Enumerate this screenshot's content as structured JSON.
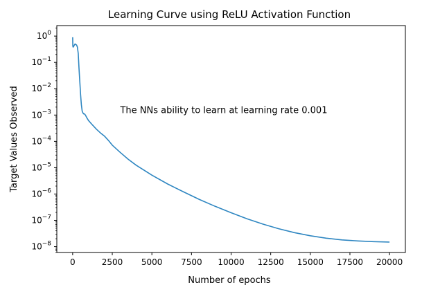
{
  "chart_data": {
    "type": "line",
    "title": "Learning Curve using ReLU Activation Function",
    "xlabel": "Number of epochs",
    "ylabel": "Target Values Observed",
    "annotation": {
      "text": "The NNs ability to learn at learning rate 0.001",
      "x": 3000,
      "y": 0.0015
    },
    "xlim": [
      -1000,
      21000
    ],
    "ylim": [
      6e-09,
      2.5
    ],
    "yscale": "log",
    "grid": false,
    "x_ticks": [
      0,
      2500,
      5000,
      7500,
      10000,
      12500,
      15000,
      17500,
      20000
    ],
    "x_tick_labels": [
      "0",
      "2500",
      "5000",
      "7500",
      "10000",
      "12500",
      "15000",
      "17500",
      "20000"
    ],
    "y_ticks": [
      1e-08,
      1e-07,
      1e-06,
      1e-05,
      0.0001,
      0.001,
      0.01,
      0.1,
      1
    ],
    "y_tick_exponents": [
      "−8",
      "−7",
      "−6",
      "−5",
      "−4",
      "−3",
      "−2",
      "−1",
      "0"
    ],
    "color": "#2e86c1",
    "series": [
      {
        "x": [
          0,
          10,
          30,
          60,
          100,
          150,
          200,
          250,
          300,
          350,
          400,
          450,
          500,
          550,
          600,
          650,
          700,
          750,
          800,
          900,
          1000,
          1250,
          1500,
          1750,
          2000,
          2250,
          2500,
          3000,
          3500,
          4000,
          5000,
          6000,
          7000,
          8000,
          9000,
          10000,
          11000,
          12000,
          13000,
          14000,
          15000,
          16000,
          17000,
          18000,
          19000,
          20000
        ],
        "y": [
          0.9,
          0.42,
          0.38,
          0.4,
          0.45,
          0.5,
          0.48,
          0.45,
          0.38,
          0.22,
          0.06,
          0.018,
          0.006,
          0.0025,
          0.0014,
          0.0012,
          0.0011,
          0.0011,
          0.001,
          0.00078,
          0.00062,
          0.00042,
          0.00029,
          0.00021,
          0.00016,
          0.00011,
          7.2e-05,
          3.8e-05,
          2.1e-05,
          1.25e-05,
          5.2e-06,
          2.4e-06,
          1.2e-06,
          6.2e-07,
          3.4e-07,
          1.95e-07,
          1.15e-07,
          7.2e-08,
          4.8e-08,
          3.4e-08,
          2.6e-08,
          2.1e-08,
          1.8e-08,
          1.65e-08,
          1.55e-08,
          1.5e-08
        ]
      }
    ]
  }
}
